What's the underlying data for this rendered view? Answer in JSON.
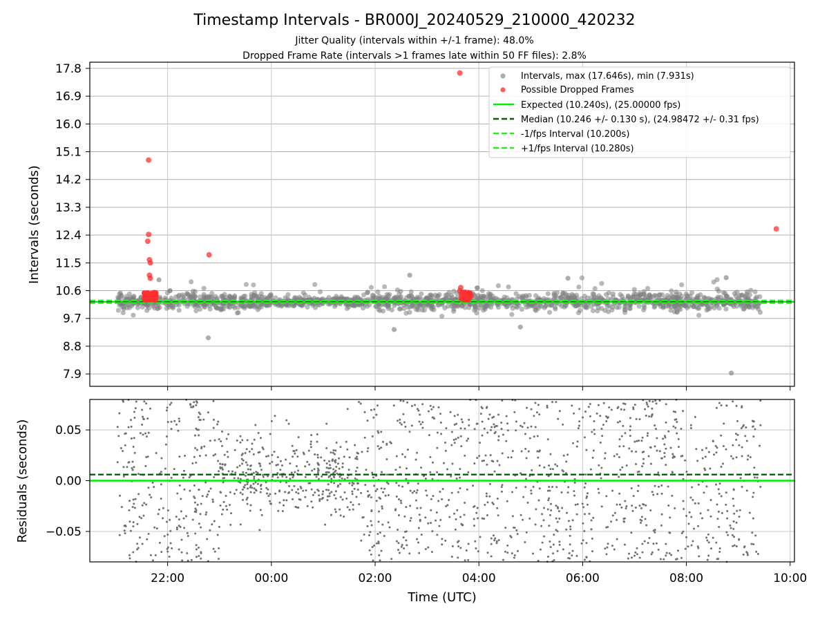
{
  "title": "Timestamp Intervals - BR000J_20240529_210000_420232",
  "subtitle_1": "Jitter Quality (intervals within +/-1 frame): 48.0%",
  "subtitle_2": "Dropped Frame Rate (intervals >1 frames late within 50 FF files): 2.8%",
  "xlabel": "Time (UTC)",
  "colors": {
    "intervals": "#808080",
    "dropped": "#ff3030",
    "expected": "#00ee00",
    "median": "#006400",
    "fps_band": "#22ee22"
  },
  "chart_data": [
    {
      "type": "scatter",
      "panel": "intervals",
      "ylabel": "Intervals (seconds)",
      "ylim": [
        7.5,
        18.0
      ],
      "xlim": [
        "20:30",
        "10:05"
      ],
      "yticks": [
        "7.9",
        "8.8",
        "9.7",
        "10.6",
        "11.5",
        "12.4",
        "13.3",
        "14.2",
        "15.1",
        "16.0",
        "16.9",
        "17.8"
      ],
      "ytick_values": [
        7.9,
        8.8,
        9.7,
        10.6,
        11.5,
        12.4,
        13.3,
        14.2,
        15.1,
        16.0,
        16.9,
        17.8
      ],
      "grid": true,
      "legend_position": "top-right",
      "legend": [
        "Intervals, max (17.646s), min (7.931s)",
        "Possible Dropped Frames",
        "Expected (10.240s), (25.00000 fps)",
        "Median (10.246 +/- 0.130 s), (24.98472 +/- 0.31 fps)",
        "-1/fps Interval (10.200s)",
        "+1/fps Interval (10.280s)"
      ],
      "expected_interval": 10.24,
      "median_interval": 10.246,
      "minus_fps_interval": 10.2,
      "plus_fps_interval": 10.28,
      "max_interval": 17.646,
      "min_interval": 7.931,
      "outliers_intervals": [
        {
          "time": "22:47",
          "value": 9.07
        },
        {
          "time": "02:22",
          "value": 9.34
        },
        {
          "time": "04:48",
          "value": 9.42
        },
        {
          "time": "08:52",
          "value": 7.93
        },
        {
          "time": "02:40",
          "value": 11.1
        },
        {
          "time": "05:43",
          "value": 11.0
        },
        {
          "time": "21:50",
          "value": 10.95
        },
        {
          "time": "08:46",
          "value": 11.02
        }
      ],
      "dropped_frames": [
        {
          "time": "21:38",
          "value": 14.83
        },
        {
          "time": "21:38",
          "value": 12.42
        },
        {
          "time": "21:37",
          "value": 12.2
        },
        {
          "time": "21:39",
          "value": 11.6
        },
        {
          "time": "21:40",
          "value": 11.5
        },
        {
          "time": "21:39",
          "value": 11.1
        },
        {
          "time": "21:40",
          "value": 11.0
        },
        {
          "time": "22:48",
          "value": 11.76
        },
        {
          "time": "03:38",
          "value": 17.65
        },
        {
          "time": "09:44",
          "value": 12.6
        },
        {
          "time": "03:39",
          "value": 10.7
        },
        {
          "time": "03:38",
          "value": 10.6
        }
      ]
    },
    {
      "type": "scatter",
      "panel": "residuals",
      "ylabel": "Residuals (seconds)",
      "ylim": [
        -0.08,
        0.08
      ],
      "xlim": [
        "20:30",
        "10:05"
      ],
      "yticks": [
        "−0.05",
        "0.00",
        "0.05"
      ],
      "ytick_values": [
        -0.05,
        0.0,
        0.05
      ],
      "xticks": [
        "22:00",
        "00:00",
        "02:00",
        "04:00",
        "06:00",
        "08:00",
        "10:00"
      ],
      "grid": true,
      "zero_line": 0.0,
      "median_offset": 0.006
    }
  ]
}
